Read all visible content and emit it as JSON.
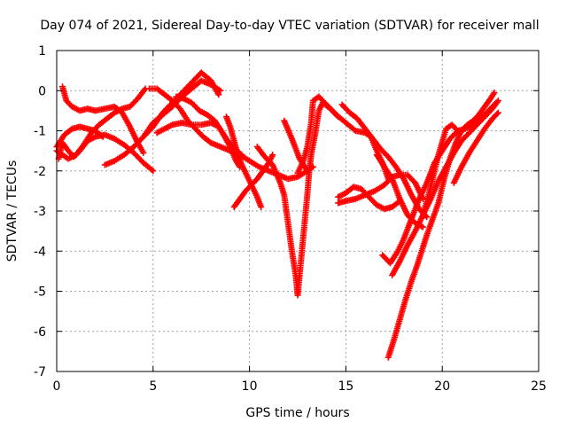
{
  "chart_data": {
    "type": "scatter",
    "title": "Day 074 of 2021, Sidereal Day-to-day VTEC variation (SDTVAR) for receiver mall",
    "xlabel": "GPS time / hours",
    "ylabel": "SDTVAR / TECUs",
    "xlim": [
      0,
      25
    ],
    "ylim": [
      -7,
      1
    ],
    "xticks": [
      0,
      5,
      10,
      15,
      20,
      25
    ],
    "yticks": [
      1,
      0,
      -1,
      -2,
      -3,
      -4,
      -5,
      -6,
      -7
    ],
    "grid": true,
    "marker": "+",
    "color": "#ff0000",
    "series": [
      {
        "points": [
          [
            0.1,
            -1.7
          ],
          [
            0.3,
            -1.3
          ],
          [
            0.6,
            -1.5
          ],
          [
            0.9,
            -1.65
          ],
          [
            1.2,
            -1.5
          ],
          [
            1.6,
            -1.25
          ],
          [
            2.0,
            -1.15
          ],
          [
            2.5,
            -1.1
          ],
          [
            3.0,
            -1.2
          ],
          [
            3.5,
            -1.35
          ],
          [
            4.0,
            -1.55
          ],
          [
            4.5,
            -1.8
          ],
          [
            5.0,
            -2.0
          ]
        ]
      },
      {
        "points": [
          [
            0.0,
            -1.5
          ],
          [
            0.3,
            -1.6
          ],
          [
            0.6,
            -1.7
          ],
          [
            1.0,
            -1.6
          ],
          [
            1.4,
            -1.35
          ],
          [
            1.8,
            -1.05
          ],
          [
            2.2,
            -0.85
          ],
          [
            2.6,
            -0.7
          ],
          [
            3.0,
            -0.55
          ],
          [
            3.4,
            -0.45
          ],
          [
            3.8,
            -0.4
          ],
          [
            4.2,
            -0.2
          ],
          [
            4.6,
            0.05
          ]
        ]
      },
      {
        "points": [
          [
            0.3,
            0.1
          ],
          [
            0.5,
            -0.25
          ],
          [
            0.8,
            -0.4
          ],
          [
            1.2,
            -0.5
          ],
          [
            1.6,
            -0.45
          ],
          [
            2.0,
            -0.5
          ],
          [
            2.5,
            -0.45
          ],
          [
            3.0,
            -0.4
          ],
          [
            3.4,
            -0.55
          ],
          [
            3.8,
            -0.9
          ],
          [
            4.2,
            -1.3
          ],
          [
            4.5,
            -1.55
          ]
        ]
      },
      {
        "points": [
          [
            0.0,
            -1.4
          ],
          [
            0.4,
            -1.1
          ],
          [
            0.8,
            -0.95
          ],
          [
            1.2,
            -0.9
          ],
          [
            1.6,
            -0.95
          ],
          [
            2.0,
            -1.0
          ],
          [
            2.4,
            -1.15
          ]
        ]
      },
      {
        "points": [
          [
            2.5,
            -1.85
          ],
          [
            3.0,
            -1.75
          ],
          [
            3.5,
            -1.6
          ],
          [
            4.0,
            -1.4
          ],
          [
            4.5,
            -1.15
          ],
          [
            5.0,
            -0.8
          ],
          [
            5.5,
            -0.6
          ],
          [
            6.0,
            -0.4
          ],
          [
            6.5,
            -0.15
          ],
          [
            7.0,
            0.05
          ],
          [
            7.5,
            0.25
          ],
          [
            8.0,
            0.15
          ],
          [
            8.5,
            0.0
          ]
        ]
      },
      {
        "points": [
          [
            4.6,
            -1.1
          ],
          [
            5.0,
            -0.9
          ],
          [
            5.5,
            -0.55
          ],
          [
            6.0,
            -0.3
          ],
          [
            6.5,
            -0.05
          ],
          [
            7.0,
            0.2
          ],
          [
            7.5,
            0.45
          ],
          [
            8.0,
            0.25
          ],
          [
            8.4,
            -0.1
          ]
        ]
      },
      {
        "points": [
          [
            4.8,
            0.05
          ],
          [
            5.2,
            0.05
          ],
          [
            5.6,
            -0.1
          ],
          [
            6.0,
            -0.25
          ],
          [
            6.4,
            -0.45
          ],
          [
            6.8,
            -0.75
          ],
          [
            7.2,
            -0.95
          ],
          [
            7.6,
            -1.15
          ],
          [
            8.0,
            -1.3
          ],
          [
            8.5,
            -1.4
          ],
          [
            9.0,
            -1.5
          ],
          [
            9.5,
            -1.6
          ],
          [
            10.0,
            -1.75
          ],
          [
            10.5,
            -1.9
          ],
          [
            11.0,
            -2.0
          ],
          [
            11.5,
            -2.1
          ],
          [
            12.0,
            -2.2
          ],
          [
            12.5,
            -2.15
          ],
          [
            13.0,
            -2.0
          ]
        ]
      },
      {
        "points": [
          [
            5.2,
            -1.05
          ],
          [
            5.6,
            -0.95
          ],
          [
            6.0,
            -0.85
          ],
          [
            6.5,
            -0.8
          ],
          [
            7.0,
            -0.85
          ],
          [
            7.5,
            -0.85
          ],
          [
            8.0,
            -0.8
          ],
          [
            8.4,
            -0.9
          ],
          [
            8.8,
            -1.2
          ],
          [
            9.2,
            -1.45
          ],
          [
            9.6,
            -1.6
          ]
        ]
      },
      {
        "points": [
          [
            6.2,
            -0.15
          ],
          [
            6.6,
            -0.2
          ],
          [
            7.0,
            -0.3
          ],
          [
            7.4,
            -0.5
          ],
          [
            7.8,
            -0.6
          ],
          [
            8.2,
            -0.75
          ],
          [
            8.6,
            -1.05
          ],
          [
            9.0,
            -1.4
          ],
          [
            9.3,
            -1.75
          ],
          [
            9.5,
            -1.9
          ]
        ]
      },
      {
        "points": [
          [
            8.8,
            -0.65
          ],
          [
            9.0,
            -0.9
          ],
          [
            9.2,
            -1.25
          ],
          [
            9.4,
            -1.6
          ],
          [
            9.6,
            -1.85
          ],
          [
            9.8,
            -2.05
          ],
          [
            10.1,
            -2.35
          ],
          [
            10.4,
            -2.65
          ],
          [
            10.6,
            -2.9
          ]
        ]
      },
      {
        "points": [
          [
            9.2,
            -2.9
          ],
          [
            9.5,
            -2.7
          ],
          [
            9.8,
            -2.5
          ],
          [
            10.1,
            -2.35
          ],
          [
            10.4,
            -2.2
          ],
          [
            10.7,
            -2.0
          ],
          [
            11.0,
            -1.8
          ],
          [
            11.2,
            -1.6
          ]
        ]
      },
      {
        "points": [
          [
            10.4,
            -1.4
          ],
          [
            10.8,
            -1.65
          ],
          [
            11.2,
            -1.85
          ],
          [
            11.6,
            -2.3
          ],
          [
            11.8,
            -2.6
          ],
          [
            12.0,
            -3.3
          ],
          [
            12.2,
            -4.0
          ],
          [
            12.4,
            -4.6
          ],
          [
            12.5,
            -5.1
          ],
          [
            12.6,
            -4.6
          ],
          [
            12.8,
            -3.6
          ],
          [
            13.0,
            -2.6
          ],
          [
            13.1,
            -2.0
          ],
          [
            13.2,
            -1.6
          ],
          [
            13.4,
            -1.1
          ],
          [
            13.6,
            -0.5
          ],
          [
            13.8,
            -0.3
          ],
          [
            14.2,
            -0.45
          ],
          [
            14.6,
            -0.65
          ]
        ]
      },
      {
        "points": [
          [
            11.8,
            -0.75
          ],
          [
            12.2,
            -1.2
          ],
          [
            12.6,
            -1.7
          ],
          [
            13.0,
            -2.0
          ],
          [
            13.3,
            -1.9
          ]
        ]
      },
      {
        "points": [
          [
            12.5,
            -2.05
          ],
          [
            12.8,
            -1.75
          ],
          [
            13.0,
            -1.4
          ],
          [
            13.2,
            -0.8
          ],
          [
            13.3,
            -0.25
          ],
          [
            13.6,
            -0.15
          ],
          [
            14.0,
            -0.35
          ],
          [
            14.5,
            -0.6
          ],
          [
            15.0,
            -0.8
          ],
          [
            15.5,
            -1.0
          ],
          [
            16.0,
            -1.05
          ],
          [
            16.3,
            -1.15
          ],
          [
            16.6,
            -1.5
          ],
          [
            16.9,
            -1.8
          ],
          [
            17.2,
            -2.2
          ]
        ]
      },
      {
        "points": [
          [
            14.8,
            -0.35
          ],
          [
            15.2,
            -0.55
          ],
          [
            15.6,
            -0.7
          ],
          [
            16.0,
            -0.95
          ],
          [
            16.4,
            -1.2
          ],
          [
            16.8,
            -1.45
          ],
          [
            17.2,
            -1.65
          ],
          [
            17.6,
            -1.9
          ],
          [
            18.0,
            -2.2
          ],
          [
            18.4,
            -2.6
          ],
          [
            18.8,
            -2.95
          ],
          [
            19.2,
            -3.15
          ]
        ]
      },
      {
        "points": [
          [
            14.6,
            -2.8
          ],
          [
            15.0,
            -2.75
          ],
          [
            15.5,
            -2.7
          ],
          [
            16.0,
            -2.6
          ],
          [
            16.5,
            -2.5
          ],
          [
            17.0,
            -2.35
          ],
          [
            17.4,
            -2.15
          ],
          [
            17.8,
            -2.1
          ],
          [
            18.2,
            -2.1
          ],
          [
            18.6,
            -2.3
          ],
          [
            19.0,
            -2.7
          ]
        ]
      },
      {
        "points": [
          [
            14.6,
            -2.65
          ],
          [
            15.0,
            -2.55
          ],
          [
            15.4,
            -2.4
          ],
          [
            15.8,
            -2.45
          ],
          [
            16.2,
            -2.65
          ],
          [
            16.6,
            -2.85
          ],
          [
            17.0,
            -2.95
          ],
          [
            17.4,
            -2.9
          ],
          [
            17.8,
            -2.75
          ]
        ]
      },
      {
        "points": [
          [
            16.6,
            -1.6
          ],
          [
            17.0,
            -1.9
          ],
          [
            17.4,
            -2.2
          ],
          [
            17.8,
            -2.7
          ],
          [
            18.2,
            -3.1
          ],
          [
            18.6,
            -3.3
          ],
          [
            19.0,
            -3.4
          ]
        ]
      },
      {
        "points": [
          [
            17.2,
            -6.65
          ],
          [
            17.5,
            -6.2
          ],
          [
            17.8,
            -5.7
          ],
          [
            18.1,
            -5.2
          ],
          [
            18.4,
            -4.75
          ],
          [
            18.7,
            -4.35
          ],
          [
            19.0,
            -3.9
          ],
          [
            19.2,
            -3.6
          ],
          [
            19.5,
            -3.2
          ],
          [
            19.8,
            -2.8
          ],
          [
            20.1,
            -2.2
          ],
          [
            20.4,
            -1.7
          ],
          [
            20.7,
            -1.3
          ],
          [
            21.0,
            -1.0
          ],
          [
            21.3,
            -0.85
          ],
          [
            21.6,
            -0.75
          ],
          [
            21.9,
            -0.6
          ],
          [
            22.2,
            -0.4
          ],
          [
            22.5,
            -0.2
          ],
          [
            22.7,
            -0.05
          ]
        ]
      },
      {
        "points": [
          [
            16.9,
            -4.1
          ],
          [
            17.3,
            -4.3
          ],
          [
            17.7,
            -4.0
          ],
          [
            18.0,
            -3.7
          ],
          [
            18.4,
            -3.2
          ],
          [
            18.8,
            -2.7
          ],
          [
            19.2,
            -2.3
          ],
          [
            19.6,
            -1.8
          ],
          [
            20.0,
            -1.5
          ],
          [
            20.4,
            -1.2
          ],
          [
            20.8,
            -1.0
          ],
          [
            21.2,
            -0.95
          ],
          [
            21.6,
            -0.85
          ],
          [
            22.0,
            -0.7
          ],
          [
            22.4,
            -0.5
          ],
          [
            22.8,
            -0.3
          ]
        ]
      },
      {
        "points": [
          [
            17.4,
            -4.6
          ],
          [
            17.8,
            -4.25
          ],
          [
            18.2,
            -3.85
          ],
          [
            18.6,
            -3.5
          ],
          [
            19.0,
            -3.1
          ],
          [
            19.4,
            -2.7
          ],
          [
            19.8,
            -2.25
          ],
          [
            20.2,
            -1.9
          ],
          [
            20.6,
            -1.55
          ],
          [
            21.0,
            -1.25
          ],
          [
            21.4,
            -1.05
          ],
          [
            21.8,
            -0.85
          ],
          [
            22.2,
            -0.65
          ],
          [
            22.6,
            -0.45
          ],
          [
            22.9,
            -0.25
          ]
        ]
      },
      {
        "points": [
          [
            20.6,
            -2.3
          ],
          [
            21.0,
            -1.9
          ],
          [
            21.4,
            -1.55
          ],
          [
            21.8,
            -1.25
          ],
          [
            22.2,
            -0.95
          ],
          [
            22.6,
            -0.7
          ],
          [
            22.9,
            -0.55
          ]
        ]
      },
      {
        "points": [
          [
            19.0,
            -3.1
          ],
          [
            19.4,
            -2.4
          ],
          [
            19.8,
            -1.6
          ],
          [
            20.2,
            -0.95
          ],
          [
            20.5,
            -0.85
          ],
          [
            20.8,
            -1.0
          ]
        ]
      }
    ]
  }
}
